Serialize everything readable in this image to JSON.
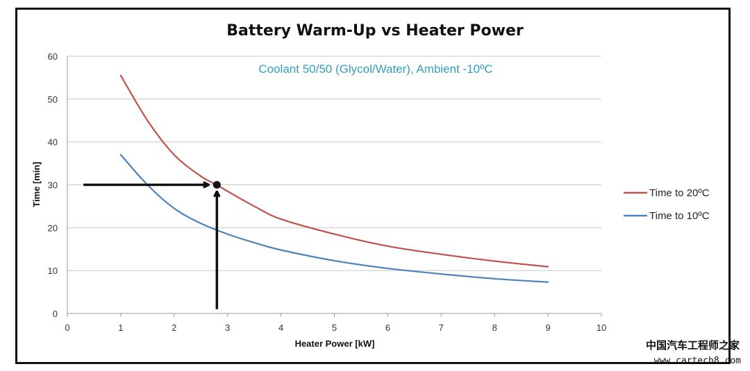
{
  "chart_data": {
    "type": "line",
    "title": "Battery Warm-Up vs Heater Power",
    "subtitle": "Coolant 50/50 (Glycol/Water), Ambient -10ºC",
    "xlabel": "Heater Power [kW]",
    "ylabel": "Time [min]",
    "xlim": [
      0,
      10
    ],
    "ylim": [
      0,
      60
    ],
    "x_ticks": [
      "0",
      "1",
      "2",
      "3",
      "4",
      "5",
      "6",
      "7",
      "8",
      "9",
      "10"
    ],
    "y_ticks": [
      "0",
      "10",
      "20",
      "30",
      "40",
      "50",
      "60"
    ],
    "grid": "horizontal",
    "legend_position": "right",
    "series": [
      {
        "name": "Time to 20ºC",
        "color": "#c0504d",
        "x": [
          1,
          1.5,
          2,
          2.5,
          2.8,
          3,
          3.5,
          4,
          5,
          6,
          7,
          8,
          9
        ],
        "y": [
          55.5,
          45,
          37,
          32,
          30,
          28.5,
          25,
          22,
          18.5,
          15.7,
          13.8,
          12.2,
          10.9
        ]
      },
      {
        "name": "Time to 10ºC",
        "color": "#4f81bd",
        "x": [
          1,
          1.5,
          2,
          2.5,
          3,
          3.5,
          4,
          5,
          6,
          7,
          8,
          9
        ],
        "y": [
          37,
          30,
          24.5,
          21,
          18.5,
          16.5,
          14.8,
          12.3,
          10.5,
          9.2,
          8.1,
          7.3
        ]
      }
    ],
    "marker_point": {
      "x": 2.8,
      "y": 30
    },
    "annotations": [
      {
        "type": "arrow",
        "direction": "right",
        "from": {
          "x": 0.3,
          "y": 30
        },
        "to": {
          "x": 2.65,
          "y": 30
        }
      },
      {
        "type": "arrow",
        "direction": "up",
        "from": {
          "x": 2.8,
          "y": 1
        },
        "to": {
          "x": 2.8,
          "y": 28.5
        }
      }
    ]
  },
  "watermark": {
    "chinese": "中国汽车工程师之家",
    "url": "www.cartech8.com"
  },
  "colors": {
    "subtitle": "#31a0b4",
    "grid": "#c8c8c8",
    "axis": "#999999",
    "arrow": "#111111"
  }
}
